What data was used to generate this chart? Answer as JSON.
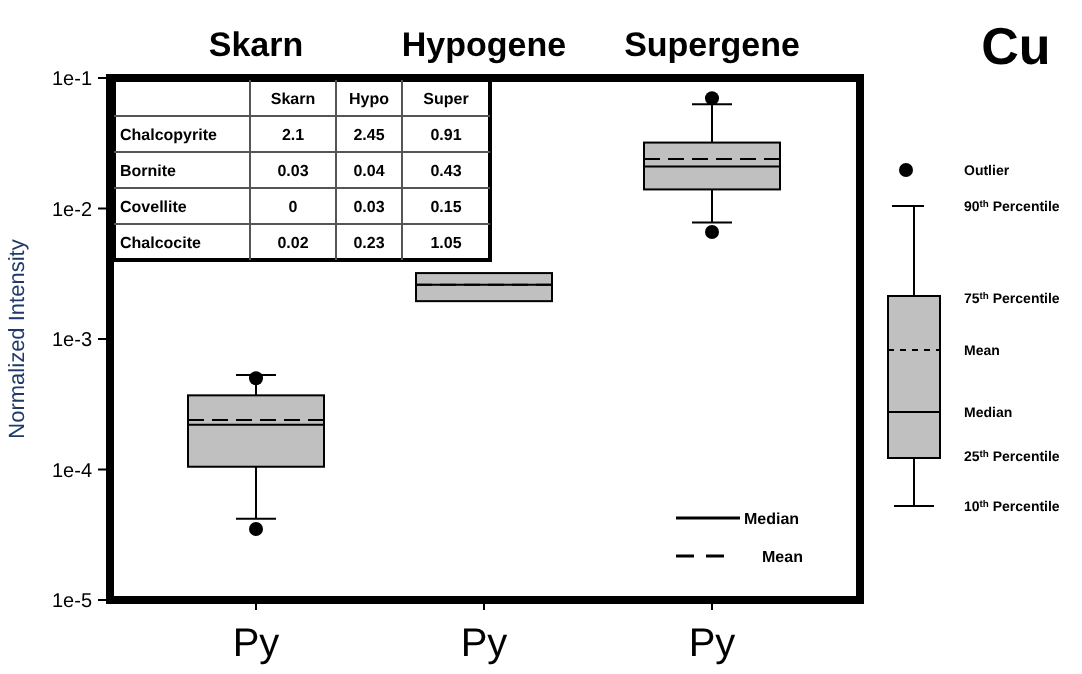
{
  "chart_data": {
    "type": "box",
    "title": "Cu",
    "ylabel": "Normalized Intensity",
    "categories": [
      "Py",
      "Py",
      "Py"
    ],
    "log": "y",
    "ylim": [
      1e-05,
      0.1
    ],
    "yticks": [
      {
        "value": 1e-05,
        "label": "1e-5"
      },
      {
        "value": 0.0001,
        "label": "1e-4"
      },
      {
        "value": 0.001,
        "label": "1e-3"
      },
      {
        "value": 0.01,
        "label": "1e-2"
      },
      {
        "value": 0.1,
        "label": "1e-1"
      }
    ],
    "color": "#c0c0c0",
    "boxes": [
      {
        "low": 4.2e-05,
        "q1": 0.000105,
        "median": 0.00022,
        "q3": 0.00037,
        "high": 0.00053,
        "mean": 0.00024,
        "outliers": [
          3.5e-05,
          0.0005
        ]
      },
      {
        "low": 0.00195,
        "q1": 0.00195,
        "median": 0.0026,
        "q3": 0.0032,
        "high": 0.0032,
        "mean": 0.0026
      },
      {
        "low": 0.0078,
        "q1": 0.014,
        "median": 0.021,
        "q3": 0.032,
        "high": 0.063,
        "mean": 0.024,
        "outliers": [
          0.0066,
          0.07
        ]
      }
    ],
    "annotations": [
      "Skarn",
      "Hypogene",
      "Supergene",
      "Skarn",
      "Hypo",
      "Super",
      "Chalcopyrite",
      "2.1",
      "2.45",
      "0.91",
      "Bornite",
      "0.03",
      "0.04",
      "0.43",
      "Covellite",
      "0",
      "0.03",
      "0.15",
      "Chalcocite",
      "0.02",
      "0.23",
      "1.05",
      "Median",
      "Mean",
      "Outlier",
      "90$^{th}$ Percentile",
      "75$^{th}$ Percentile",
      "Mean",
      "Median",
      "25$^{th}$ Percentile",
      "10$^{th}$ Percentile"
    ]
  }
}
